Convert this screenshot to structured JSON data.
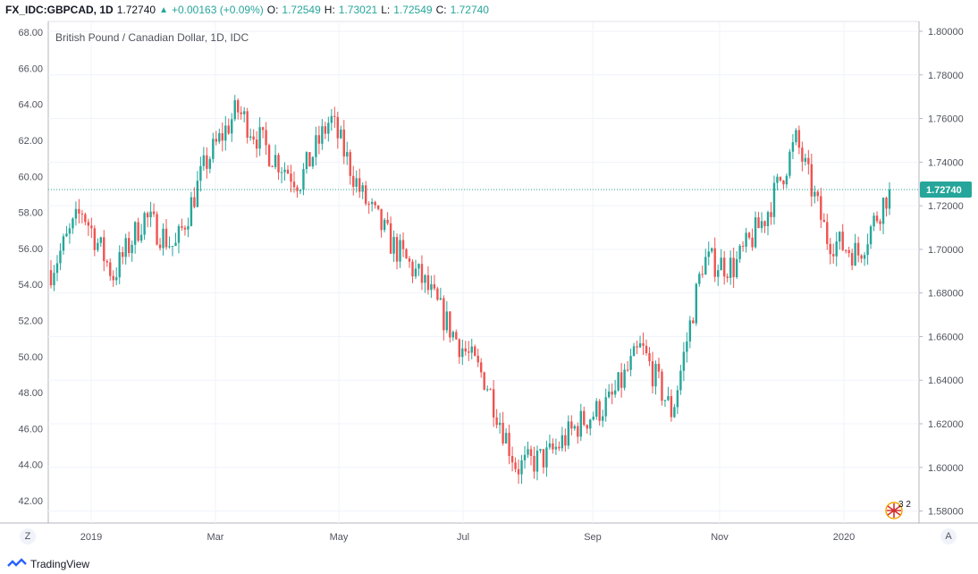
{
  "header": {
    "symbol": "FX_IDC:GBPCAD, 1D",
    "last": "1.72740",
    "change": "+0.00163 (+0.09%)",
    "o_label": "O:",
    "o_value": "1.72549",
    "h_label": "H:",
    "h_value": "1.73021",
    "l_label": "L:",
    "l_value": "1.72549",
    "c_label": "C:",
    "c_value": "1.72740"
  },
  "chart_data": {
    "type": "candlestick",
    "title": "British Pound / Canadian Dollar, 1D, IDC",
    "right_axis": {
      "ticks": [
        "1.80000",
        "1.78000",
        "1.76000",
        "1.74000",
        "1.72000",
        "1.70000",
        "1.68000",
        "1.66000",
        "1.64000",
        "1.62000",
        "1.60000",
        "1.58000"
      ],
      "range": [
        1.5745,
        1.8045
      ]
    },
    "left_axis": {
      "ticks": [
        "68.00",
        "66.00",
        "64.00",
        "62.00",
        "60.00",
        "58.00",
        "56.00",
        "54.00",
        "52.00",
        "50.00",
        "48.00",
        "46.00",
        "44.00",
        "42.00"
      ],
      "range": [
        40.76,
        68.6
      ]
    },
    "x_ticks": [
      "2019",
      "Mar",
      "May",
      "Jul",
      "Sep",
      "Nov",
      "2020"
    ],
    "last_price": 1.7274,
    "last_price_label": "1.72740",
    "up_color": "#26a69a",
    "down_color": "#ef5350",
    "series": [
      {
        "date": "2019-01",
        "close": 1.6905
      },
      {
        "date": "2019-01-mid",
        "close": 1.718
      },
      {
        "date": "2019-02",
        "close": 1.688
      },
      {
        "date": "2019-02-mid",
        "close": 1.715
      },
      {
        "date": "2019-02-late",
        "close": 1.7005
      },
      {
        "date": "2019-03",
        "close": 1.74
      },
      {
        "date": "2019-03-mid",
        "close": 1.764
      },
      {
        "date": "2019-04",
        "close": 1.745
      },
      {
        "date": "2019-04-mid",
        "close": 1.731
      },
      {
        "date": "2019-05",
        "close": 1.76
      },
      {
        "date": "2019-05-mid",
        "close": 1.725
      },
      {
        "date": "2019-06",
        "close": 1.702
      },
      {
        "date": "2019-06-mid",
        "close": 1.685
      },
      {
        "date": "2019-07",
        "close": 1.66
      },
      {
        "date": "2019-07-mid",
        "close": 1.64
      },
      {
        "date": "2019-08",
        "close": 1.6
      },
      {
        "date": "2019-08-mid",
        "close": 1.605
      },
      {
        "date": "2019-09",
        "close": 1.62
      },
      {
        "date": "2019-09-mid",
        "close": 1.63
      },
      {
        "date": "2019-10",
        "close": 1.655
      },
      {
        "date": "2019-10-mid",
        "close": 1.625
      },
      {
        "date": "2019-11",
        "close": 1.695
      },
      {
        "date": "2019-11-mid",
        "close": 1.692
      },
      {
        "date": "2019-12",
        "close": 1.715
      },
      {
        "date": "2019-12-mid",
        "close": 1.75
      },
      {
        "date": "2020-01",
        "close": 1.705
      },
      {
        "date": "2020-01-mid",
        "close": 1.698
      },
      {
        "date": "2020-01-late",
        "close": 1.7274
      }
    ]
  },
  "footer": {
    "brand": "TradingView"
  },
  "controls": {
    "left": "Z",
    "right": "A"
  },
  "badge": {
    "count": "3 2"
  }
}
